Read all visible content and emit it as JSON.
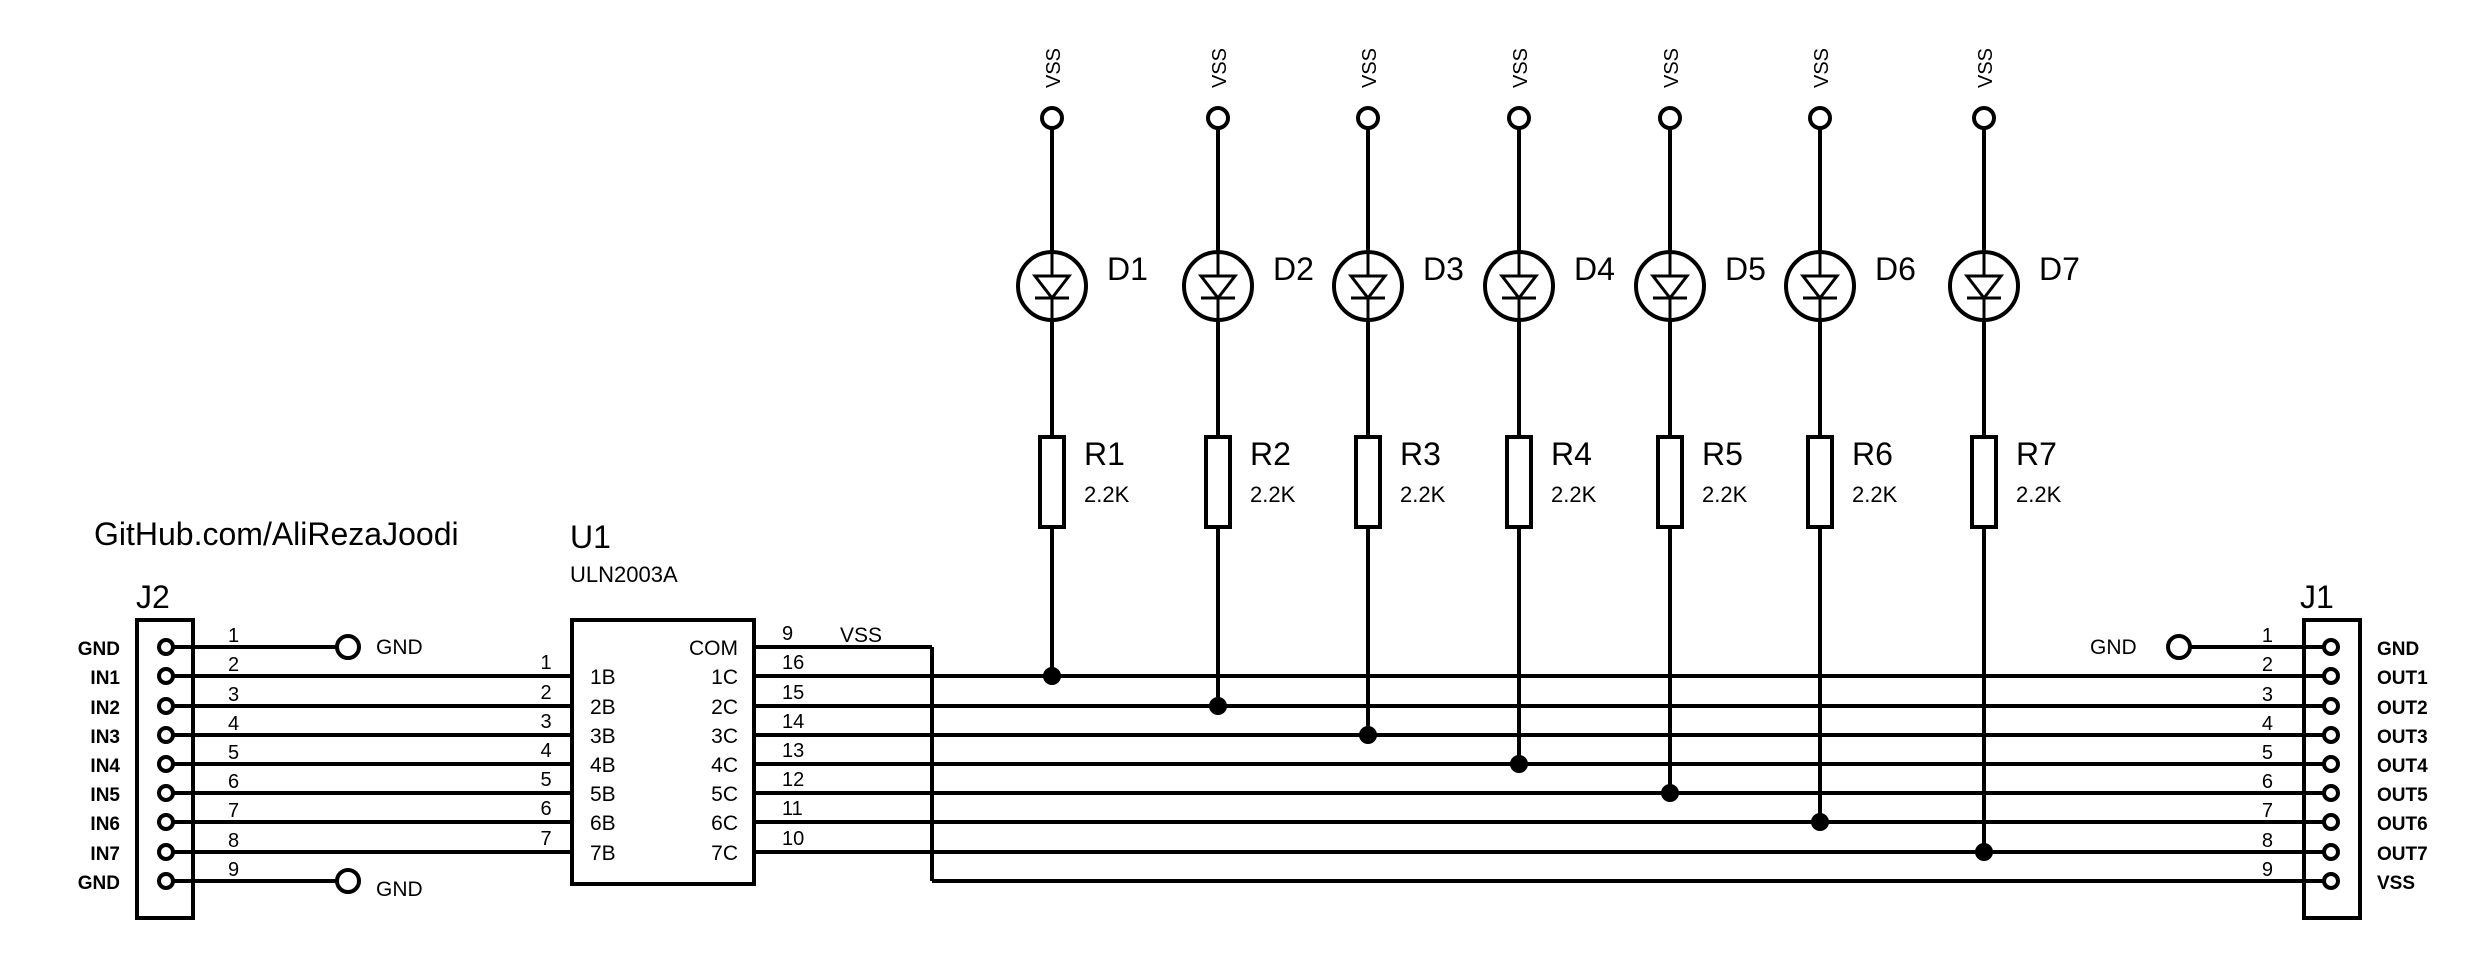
{
  "watermark": "GitHub.com/AliRezaJoodi",
  "vss_label": "VSS",
  "gnd_label": "GND",
  "j2": {
    "ref": "J2",
    "pins": [
      {
        "num": "1",
        "label": "GND"
      },
      {
        "num": "2",
        "label": "IN1"
      },
      {
        "num": "3",
        "label": "IN2"
      },
      {
        "num": "4",
        "label": "IN3"
      },
      {
        "num": "5",
        "label": "IN4"
      },
      {
        "num": "6",
        "label": "IN5"
      },
      {
        "num": "7",
        "label": "IN6"
      },
      {
        "num": "8",
        "label": "IN7"
      },
      {
        "num": "9",
        "label": "GND"
      }
    ]
  },
  "j1": {
    "ref": "J1",
    "pins": [
      {
        "num": "1",
        "label": "GND"
      },
      {
        "num": "2",
        "label": "OUT1"
      },
      {
        "num": "3",
        "label": "OUT2"
      },
      {
        "num": "4",
        "label": "OUT3"
      },
      {
        "num": "5",
        "label": "OUT4"
      },
      {
        "num": "6",
        "label": "OUT5"
      },
      {
        "num": "7",
        "label": "OUT6"
      },
      {
        "num": "8",
        "label": "OUT7"
      },
      {
        "num": "9",
        "label": "VSS"
      }
    ]
  },
  "u1": {
    "ref": "U1",
    "part": "ULN2003A",
    "left_pins": [
      {
        "num": "1",
        "name": "1B"
      },
      {
        "num": "2",
        "name": "2B"
      },
      {
        "num": "3",
        "name": "3B"
      },
      {
        "num": "4",
        "name": "4B"
      },
      {
        "num": "5",
        "name": "5B"
      },
      {
        "num": "6",
        "name": "6B"
      },
      {
        "num": "7",
        "name": "7B"
      }
    ],
    "right_pins": [
      {
        "num": "9",
        "name": "COM"
      },
      {
        "num": "16",
        "name": "1C"
      },
      {
        "num": "15",
        "name": "2C"
      },
      {
        "num": "14",
        "name": "3C"
      },
      {
        "num": "13",
        "name": "4C"
      },
      {
        "num": "12",
        "name": "5C"
      },
      {
        "num": "11",
        "name": "6C"
      },
      {
        "num": "10",
        "name": "7C"
      }
    ]
  },
  "channels": [
    {
      "led": "D1",
      "res": "R1",
      "value": "2.2K"
    },
    {
      "led": "D2",
      "res": "R2",
      "value": "2.2K"
    },
    {
      "led": "D3",
      "res": "R3",
      "value": "2.2K"
    },
    {
      "led": "D4",
      "res": "R4",
      "value": "2.2K"
    },
    {
      "led": "D5",
      "res": "R5",
      "value": "2.2K"
    },
    {
      "led": "D6",
      "res": "R6",
      "value": "2.2K"
    },
    {
      "led": "D7",
      "res": "R7",
      "value": "2.2K"
    }
  ]
}
